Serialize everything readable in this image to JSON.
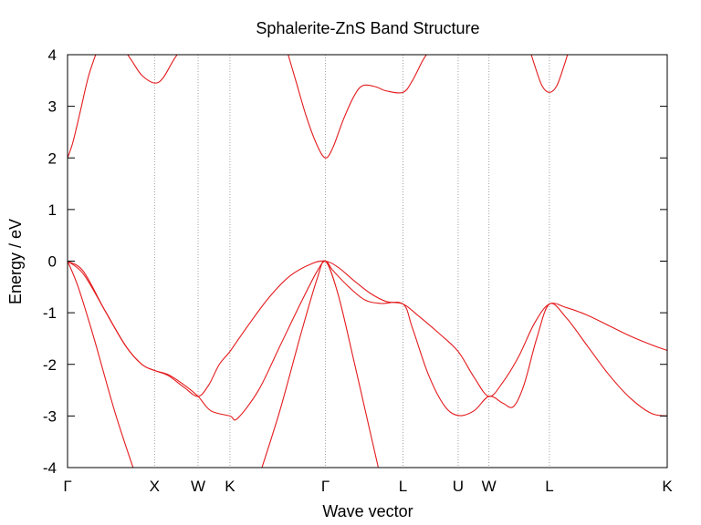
{
  "chart_data": {
    "type": "line",
    "title": "Sphalerite-ZnS Band Structure",
    "xlabel": "Wave vector",
    "ylabel": "Energy / eV",
    "ylim": [
      -4,
      4
    ],
    "yticks": [
      -4,
      -3,
      -2,
      -1,
      0,
      1,
      2,
      3,
      4
    ],
    "xlim": [
      0,
      5.65
    ],
    "kpoints": [
      {
        "label": "Γ",
        "x": 0
      },
      {
        "label": "X",
        "x": 0.82
      },
      {
        "label": "W",
        "x": 1.23
      },
      {
        "label": "K",
        "x": 1.53
      },
      {
        "label": "Γ",
        "x": 2.43
      },
      {
        "label": "L",
        "x": 3.16
      },
      {
        "label": "U",
        "x": 3.68
      },
      {
        "label": "W",
        "x": 3.97
      },
      {
        "label": "L",
        "x": 4.54
      },
      {
        "label": "K",
        "x": 5.65
      }
    ],
    "grid": false,
    "series": [
      {
        "x": [
          0,
          0.05,
          0.12,
          0.2,
          0.3
        ],
        "y": [
          2.0,
          2.3,
          2.9,
          3.6,
          4.2
        ]
      },
      {
        "x": [
          0.5,
          0.6,
          0.7,
          0.82,
          0.9,
          1.0,
          1.1
        ],
        "y": [
          4.2,
          3.9,
          3.6,
          3.45,
          3.55,
          3.9,
          4.2
        ]
      },
      {
        "x": [
          2.05,
          2.15,
          2.25,
          2.35,
          2.43,
          2.5,
          2.6,
          2.7,
          2.78,
          2.9,
          3.0,
          3.16,
          3.25,
          3.35,
          3.45
        ],
        "y": [
          4.2,
          3.5,
          2.8,
          2.25,
          2.0,
          2.2,
          2.75,
          3.2,
          3.4,
          3.38,
          3.3,
          3.27,
          3.5,
          3.9,
          4.2
        ]
      },
      {
        "x": [
          4.34,
          4.4,
          4.47,
          4.54,
          4.61,
          4.68,
          4.74
        ],
        "y": [
          4.2,
          3.8,
          3.4,
          3.27,
          3.4,
          3.8,
          4.2
        ]
      },
      {
        "x": [
          0,
          0.15,
          0.35,
          0.55,
          0.7,
          0.82,
          0.95,
          1.1,
          1.23,
          1.33,
          1.43,
          1.53,
          1.7,
          1.9,
          2.1,
          2.3,
          2.43,
          2.55,
          2.7,
          2.85,
          3.0,
          3.16,
          3.3,
          3.5,
          3.68,
          3.83,
          3.97,
          4.1,
          4.25,
          4.4,
          4.54,
          4.7,
          4.9,
          5.1,
          5.3,
          5.5,
          5.65
        ],
        "y": [
          0.0,
          -0.2,
          -0.95,
          -1.65,
          -2.0,
          -2.12,
          -2.22,
          -2.45,
          -2.62,
          -2.4,
          -2.0,
          -1.75,
          -1.25,
          -0.7,
          -0.28,
          -0.05,
          0.0,
          -0.12,
          -0.38,
          -0.62,
          -0.78,
          -0.83,
          -1.05,
          -1.4,
          -1.75,
          -2.25,
          -2.62,
          -2.35,
          -1.85,
          -1.2,
          -0.83,
          -0.9,
          -1.05,
          -1.25,
          -1.45,
          -1.62,
          -1.73
        ]
      },
      {
        "x": [
          0,
          0.15,
          0.35,
          0.55,
          0.7,
          0.82,
          0.95,
          1.1,
          1.23,
          1.35,
          1.53,
          1.6,
          1.8,
          2.0,
          2.2,
          2.35,
          2.43,
          2.5,
          2.65,
          2.8,
          2.95,
          3.16,
          3.25,
          3.4,
          3.55,
          3.68,
          3.83,
          3.97,
          4.1,
          4.2,
          4.3,
          4.42,
          4.54,
          4.7,
          4.9,
          5.1,
          5.3,
          5.5,
          5.65
        ],
        "y": [
          0.0,
          -0.25,
          -0.95,
          -1.65,
          -2.0,
          -2.12,
          -2.2,
          -2.4,
          -2.62,
          -2.9,
          -3.0,
          -3.05,
          -2.5,
          -1.65,
          -0.8,
          -0.2,
          0.0,
          -0.18,
          -0.5,
          -0.75,
          -0.82,
          -0.83,
          -1.3,
          -2.2,
          -2.8,
          -2.99,
          -2.9,
          -2.62,
          -2.75,
          -2.82,
          -2.4,
          -1.5,
          -0.83,
          -1.1,
          -1.65,
          -2.2,
          -2.65,
          -2.95,
          -3.0
        ]
      },
      {
        "x": [
          0,
          0.1,
          0.25,
          0.45,
          0.65
        ],
        "y": [
          0.0,
          -0.5,
          -1.5,
          -2.95,
          -4.2
        ]
      },
      {
        "x": [
          1.8,
          2.0,
          2.2,
          2.35,
          2.43,
          2.55,
          2.7,
          2.85,
          2.95
        ],
        "y": [
          -4.2,
          -2.9,
          -1.4,
          -0.35,
          0.0,
          -0.65,
          -1.95,
          -3.3,
          -4.2
        ]
      }
    ]
  }
}
